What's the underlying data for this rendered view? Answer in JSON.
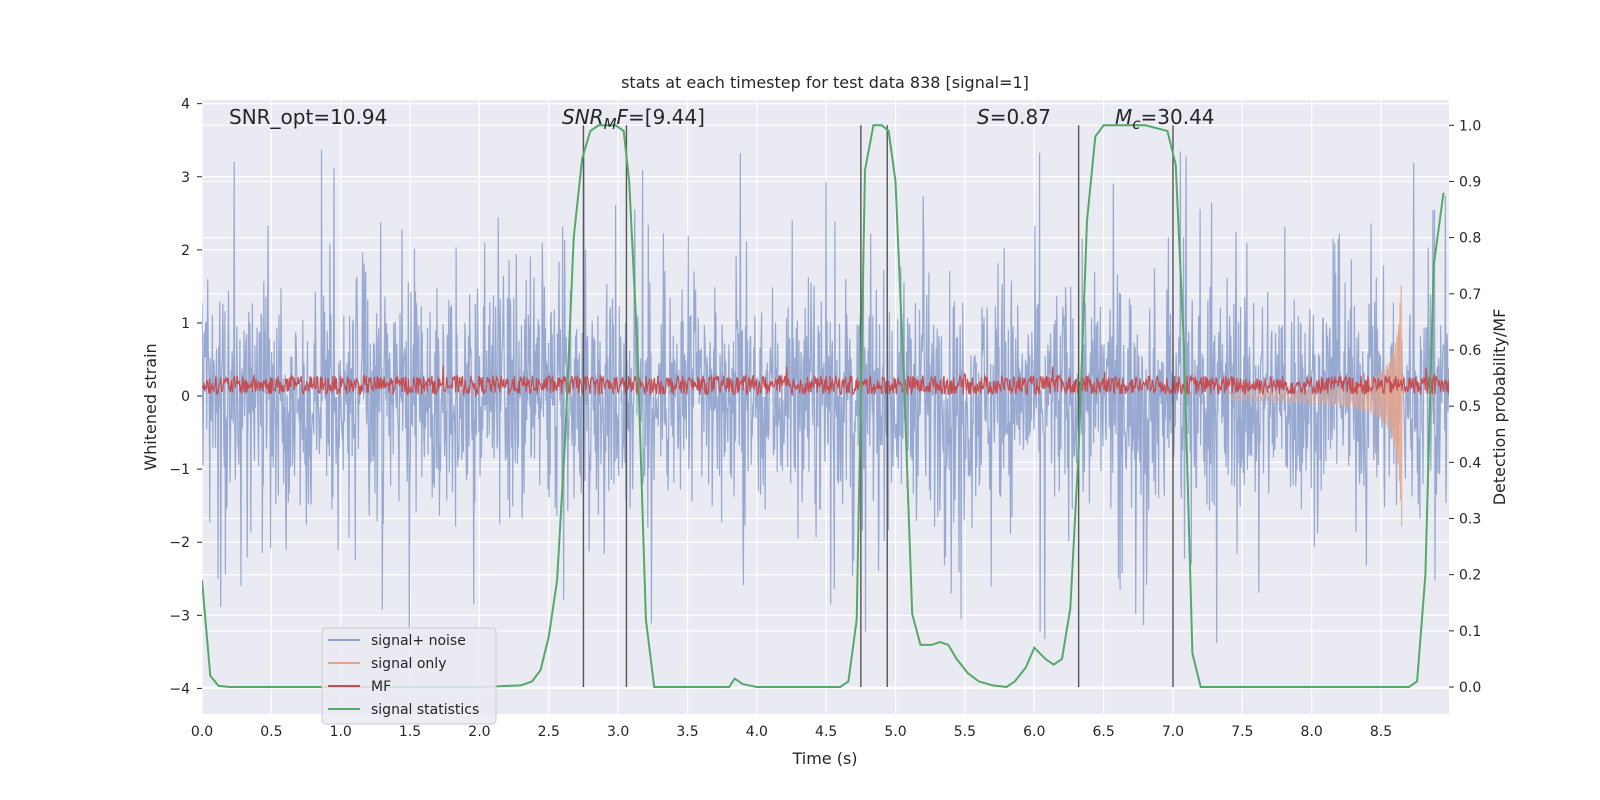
{
  "chart_data": {
    "type": "line",
    "title": "stats at each timestep for test data 838 [signal=1]",
    "xlabel": "Time (s)",
    "ylabel": "Whitened strain",
    "ylabel_right": "Detection probability/MF",
    "xlim": [
      0,
      8.99
    ],
    "ylim": [
      -4.35,
      4.05
    ],
    "ylim_right": [
      -0.048,
      1.045
    ],
    "x_ticks": [
      "0.0",
      "0.5",
      "1.0",
      "1.5",
      "2.0",
      "2.5",
      "3.0",
      "3.5",
      "4.0",
      "4.5",
      "5.0",
      "5.5",
      "6.0",
      "6.5",
      "7.0",
      "7.5",
      "8.0",
      "8.5"
    ],
    "y_ticks": [
      "4",
      "3",
      "2",
      "1",
      "0",
      "−1",
      "−2",
      "−3",
      "−4"
    ],
    "y_ticks_right": [
      "1.0",
      "0.9",
      "0.8",
      "0.7",
      "0.6",
      "0.5",
      "0.4",
      "0.3",
      "0.2",
      "0.1",
      "0.0"
    ],
    "grid": true,
    "legend_position": "lower-left",
    "colors": {
      "signal_noise": "#8ea2cc",
      "signal_only": "#e8a48a",
      "mf": "#c44e52",
      "stats": "#55a868",
      "vline": "#555555",
      "background": "#eaeaf2"
    },
    "annotations": {
      "snr_opt": "SNR_opt=10.94",
      "snr_mf_italic": "SNR",
      "snr_mf_sub": "M",
      "snr_mf_italic2": "F",
      "snr_mf_value": "=[9.44]",
      "s_italic": "S",
      "s_value": "=0.87",
      "mc_italic": "M",
      "mc_sub": "c",
      "mc_value": "=30.44"
    },
    "vertical_lines": [
      2.75,
      3.06,
      4.75,
      4.94,
      6.32,
      7.0
    ],
    "series": [
      {
        "name": "signal+ noise",
        "kind": "noise",
        "envelope_typical": 1.6,
        "spike_max": 3.4
      },
      {
        "name": "signal only",
        "kind": "chirp",
        "start": 7.4,
        "peak_time": 8.65,
        "peak_amplitude": 2.3
      },
      {
        "name": "MF",
        "kind": "band",
        "center": 0.15,
        "amplitude": 0.2
      },
      {
        "name": "signal statistics",
        "axis": "right",
        "x": [
          0.0,
          0.06,
          0.12,
          0.2,
          0.5,
          1.0,
          1.5,
          2.0,
          2.3,
          2.38,
          2.44,
          2.5,
          2.56,
          2.62,
          2.68,
          2.74,
          2.8,
          2.86,
          2.92,
          2.98,
          3.04,
          3.08,
          3.14,
          3.2,
          3.26,
          3.4,
          3.8,
          3.84,
          3.9,
          4.0,
          4.5,
          4.6,
          4.66,
          4.72,
          4.78,
          4.84,
          4.9,
          4.95,
          5.0,
          5.06,
          5.12,
          5.18,
          5.26,
          5.32,
          5.38,
          5.44,
          5.52,
          5.6,
          5.7,
          5.8,
          5.86,
          5.94,
          6.0,
          6.08,
          6.14,
          6.2,
          6.26,
          6.32,
          6.38,
          6.44,
          6.5,
          6.6,
          6.8,
          6.96,
          7.02,
          7.08,
          7.14,
          7.2,
          7.5,
          8.0,
          8.5,
          8.7,
          8.76,
          8.82,
          8.88,
          8.95
        ],
        "values": [
          0.19,
          0.02,
          0.002,
          0.0,
          0.0,
          0.0,
          0.0,
          0.0,
          0.003,
          0.01,
          0.03,
          0.09,
          0.19,
          0.45,
          0.8,
          0.94,
          0.99,
          1.0,
          1.0,
          1.0,
          0.99,
          0.9,
          0.6,
          0.12,
          0.0,
          0.0,
          0.0,
          0.015,
          0.005,
          0.0,
          0.0,
          0.0,
          0.01,
          0.12,
          0.92,
          1.0,
          1.0,
          0.99,
          0.9,
          0.55,
          0.13,
          0.075,
          0.075,
          0.08,
          0.075,
          0.05,
          0.025,
          0.01,
          0.003,
          0.0,
          0.01,
          0.035,
          0.07,
          0.05,
          0.04,
          0.05,
          0.14,
          0.42,
          0.83,
          0.98,
          1.0,
          1.0,
          1.0,
          0.99,
          0.93,
          0.6,
          0.06,
          0.0,
          0.0,
          0.0,
          0.0,
          0.0,
          0.01,
          0.2,
          0.75,
          0.88
        ]
      }
    ]
  }
}
